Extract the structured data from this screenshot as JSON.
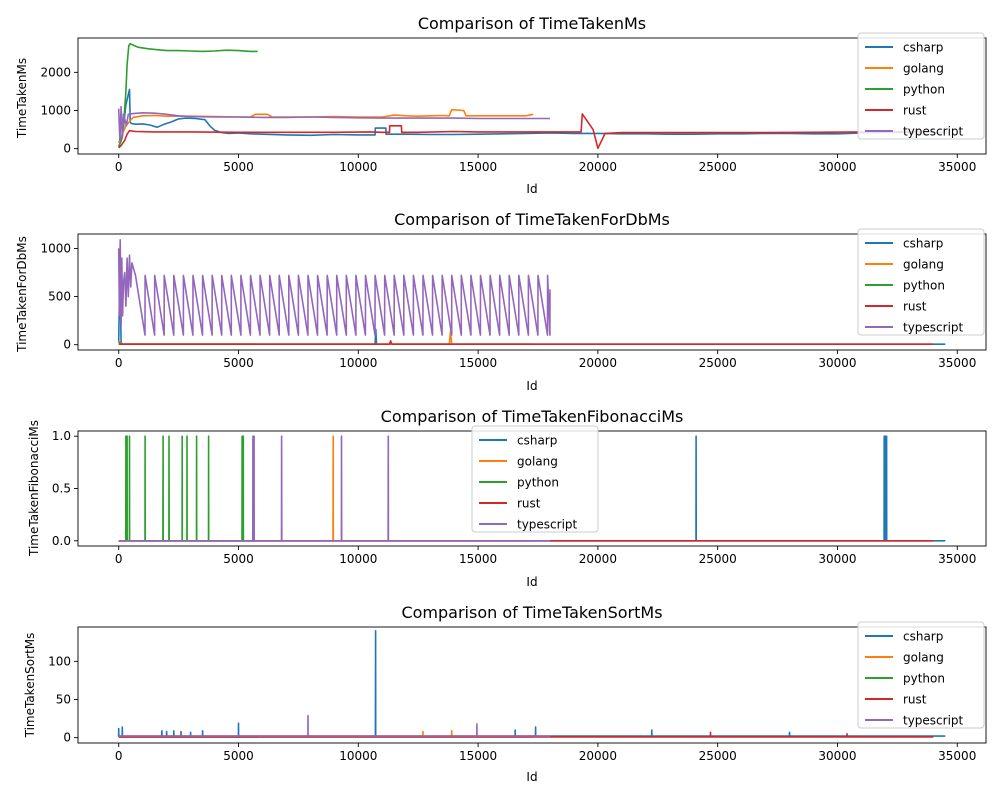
{
  "colors": {
    "csharp": "#1f77b4",
    "golang": "#ff7f0e",
    "python": "#2ca02c",
    "rust": "#d62728",
    "typescript": "#9467bd"
  },
  "legend_order": [
    "csharp",
    "golang",
    "python",
    "rust",
    "typescript"
  ],
  "chart_data": [
    {
      "type": "line",
      "title": "Comparison of TimeTakenMs",
      "xlabel": "Id",
      "ylabel": "TimeTakenMs",
      "xlim": [
        -1700,
        36200
      ],
      "ylim": [
        -140,
        2900
      ],
      "xticks": [
        0,
        5000,
        10000,
        15000,
        20000,
        25000,
        30000,
        35000
      ],
      "yticks": [
        0,
        1000,
        2000
      ],
      "legend": "top-right",
      "series": [
        {
          "name": "csharp",
          "x": [
            0,
            150,
            300,
            450,
            480,
            520,
            700,
            1000,
            1300,
            1600,
            1900,
            2200,
            2500,
            2800,
            3200,
            3600,
            3800,
            4000,
            4300,
            4600,
            5000,
            5500,
            6000,
            7000,
            8000,
            9000,
            10000,
            10700,
            10710,
            11150,
            11160,
            12000,
            13000,
            14000,
            15000,
            16000,
            17000,
            18000,
            19000,
            20000,
            21000,
            22000,
            23000,
            24000,
            25000,
            26000,
            27000,
            28000,
            29000,
            30000,
            31000,
            32000,
            33000,
            34000,
            34500
          ],
          "y": [
            50,
            300,
            1150,
            1550,
            700,
            660,
            640,
            650,
            620,
            560,
            640,
            700,
            780,
            800,
            790,
            760,
            600,
            480,
            420,
            400,
            410,
            390,
            380,
            360,
            350,
            370,
            360,
            360,
            540,
            540,
            380,
            380,
            370,
            370,
            380,
            390,
            400,
            410,
            400,
            400,
            390,
            390,
            380,
            380,
            390,
            390,
            400,
            400,
            390,
            390,
            410,
            420,
            420,
            420,
            420
          ]
        },
        {
          "name": "golang",
          "x": [
            0,
            300,
            600,
            1000,
            1500,
            2000,
            3000,
            4000,
            5000,
            5500,
            5700,
            6200,
            6400,
            7000,
            8000,
            9000,
            10000,
            11000,
            11500,
            12000,
            12500,
            13000,
            13500,
            13800,
            13900,
            14400,
            14500,
            15000,
            16000,
            17000,
            17300
          ],
          "y": [
            150,
            600,
            820,
            860,
            870,
            850,
            850,
            840,
            830,
            830,
            900,
            900,
            830,
            830,
            830,
            840,
            830,
            830,
            880,
            860,
            850,
            860,
            870,
            860,
            1020,
            1000,
            860,
            860,
            860,
            860,
            900
          ]
        },
        {
          "name": "python",
          "x": [
            0,
            100,
            200,
            300,
            350,
            420,
            480,
            550,
            650,
            800,
            1000,
            1200,
            1500,
            2000,
            2500,
            3000,
            3500,
            4000,
            4500,
            5000,
            5500,
            5800
          ],
          "y": [
            50,
            200,
            600,
            1500,
            2200,
            2700,
            2750,
            2730,
            2700,
            2660,
            2640,
            2620,
            2600,
            2570,
            2570,
            2560,
            2550,
            2560,
            2580,
            2570,
            2550,
            2550
          ]
        },
        {
          "name": "rust",
          "x": [
            0,
            100,
            250,
            350,
            450,
            700,
            1500,
            3000,
            5000,
            7000,
            9000,
            10500,
            11000,
            11300,
            11310,
            11800,
            11810,
            12500,
            14000,
            15000,
            17000,
            19000,
            19300,
            19350,
            19800,
            20000,
            20300,
            21000,
            23000,
            25000,
            27000,
            29000,
            31000,
            33000,
            34000
          ],
          "y": [
            20,
            80,
            220,
            380,
            470,
            450,
            440,
            440,
            430,
            430,
            430,
            440,
            430,
            430,
            600,
            600,
            430,
            430,
            450,
            440,
            440,
            440,
            440,
            910,
            500,
            10,
            400,
            420,
            420,
            420,
            420,
            430,
            440,
            450,
            450
          ]
        },
        {
          "name": "typescript",
          "x": [
            0,
            50,
            100,
            150,
            200,
            260,
            320,
            400,
            600,
            1000,
            1500,
            2000,
            2500,
            3000,
            4000,
            5000,
            6000,
            7000,
            8000,
            9000,
            10000,
            11000,
            12000,
            13000,
            14000,
            15000,
            16000,
            17000,
            18000
          ],
          "y": [
            1050,
            200,
            1100,
            300,
            900,
            750,
            600,
            900,
            920,
            940,
            930,
            900,
            860,
            840,
            830,
            830,
            820,
            820,
            830,
            820,
            810,
            800,
            800,
            800,
            800,
            790,
            790,
            790,
            790
          ]
        }
      ]
    },
    {
      "type": "line",
      "title": "Comparison of TimeTakenForDbMs",
      "xlabel": "Id",
      "ylabel": "TimeTakenForDbMs",
      "xlim": [
        -1700,
        36200
      ],
      "ylim": [
        -55,
        1150
      ],
      "xticks": [
        0,
        5000,
        10000,
        15000,
        20000,
        25000,
        30000,
        35000
      ],
      "yticks": [
        0,
        500,
        1000
      ],
      "legend": "top-right",
      "series": [
        {
          "name": "csharp",
          "x": [
            0,
            50,
            100,
            150,
            10700,
            10730,
            10760,
            34500
          ],
          "y": [
            30,
            820,
            20,
            5,
            5,
            160,
            5,
            5
          ]
        },
        {
          "name": "golang",
          "x": [
            0,
            50,
            100,
            13800,
            13850,
            13900,
            17300
          ],
          "y": [
            40,
            20,
            5,
            5,
            140,
            5,
            5
          ]
        },
        {
          "name": "python",
          "x": [
            0,
            50,
            100,
            5800
          ],
          "y": [
            30,
            10,
            5,
            5
          ]
        },
        {
          "name": "rust",
          "x": [
            0,
            11300,
            11350,
            11400,
            34000
          ],
          "y": [
            5,
            5,
            40,
            5,
            5
          ]
        },
        {
          "name": "typescript",
          "x": [
            0,
            30,
            60,
            100,
            130,
            160,
            200,
            250,
            300,
            350,
            400,
            450,
            500,
            550
          ],
          "y": [
            1000,
            300,
            1090,
            200,
            900,
            300,
            650,
            750,
            400,
            900,
            500,
            930,
            600,
            850
          ],
          "sawtooth": {
            "start": 700,
            "end": 18000,
            "period": 400,
            "min": 100,
            "max": 720
          }
        }
      ]
    },
    {
      "type": "line",
      "title": "Comparison of TimeTakenFibonacciMs",
      "xlabel": "Id",
      "ylabel": "TimeTakenFibonacciMs",
      "xlim": [
        -1700,
        36200
      ],
      "ylim": [
        -0.05,
        1.05
      ],
      "xticks": [
        0,
        5000,
        10000,
        15000,
        20000,
        25000,
        30000,
        35000
      ],
      "yticks": [
        0.0,
        0.5,
        1.0
      ],
      "legend": "top-center",
      "series": [
        {
          "name": "csharp",
          "baseline_end": 34500,
          "spikes": [
            24100,
            31950,
            32000,
            32050
          ]
        },
        {
          "name": "golang",
          "baseline_end": 17300,
          "spikes": [
            8950
          ]
        },
        {
          "name": "python",
          "baseline_end": 5800,
          "spikes": [
            300,
            350,
            450,
            1100,
            1850,
            2100,
            2650,
            2850,
            3250,
            3750,
            5150,
            5200
          ]
        },
        {
          "name": "rust",
          "baseline_end": 34000,
          "spikes": []
        },
        {
          "name": "typescript",
          "baseline_end": 18000,
          "spikes": [
            5600,
            5650,
            6800,
            9300,
            11250
          ]
        }
      ]
    },
    {
      "type": "line",
      "title": "Comparison of TimeTakenSortMs",
      "xlabel": "Id",
      "ylabel": "TimeTakenSortMs",
      "xlim": [
        -1700,
        36200
      ],
      "ylim": [
        -7,
        145
      ],
      "xticks": [
        0,
        5000,
        10000,
        15000,
        20000,
        25000,
        30000,
        35000
      ],
      "yticks": [
        0,
        50,
        100
      ],
      "legend": "top-right",
      "series": [
        {
          "name": "csharp",
          "baseline_end": 34500,
          "base": 2,
          "spikes": [
            [
              0,
              12
            ],
            [
              150,
              14
            ],
            [
              1800,
              9
            ],
            [
              2000,
              8
            ],
            [
              2300,
              9
            ],
            [
              2600,
              8
            ],
            [
              3000,
              7
            ],
            [
              3500,
              9
            ],
            [
              5000,
              19
            ],
            [
              10720,
              140
            ],
            [
              16550,
              10
            ],
            [
              17400,
              14
            ],
            [
              22250,
              10
            ],
            [
              28000,
              7
            ]
          ]
        },
        {
          "name": "golang",
          "baseline_end": 17300,
          "base": 1,
          "spikes": [
            [
              12700,
              8
            ],
            [
              13900,
              9
            ]
          ]
        },
        {
          "name": "python",
          "baseline_end": 5800,
          "base": 1,
          "spikes": []
        },
        {
          "name": "rust",
          "baseline_end": 34000,
          "base": 1,
          "spikes": [
            [
              24700,
              7
            ],
            [
              30400,
              5
            ]
          ]
        },
        {
          "name": "typescript",
          "baseline_end": 18000,
          "base": 2,
          "spikes": [
            [
              7900,
              29
            ],
            [
              14950,
              18
            ]
          ]
        }
      ]
    }
  ]
}
